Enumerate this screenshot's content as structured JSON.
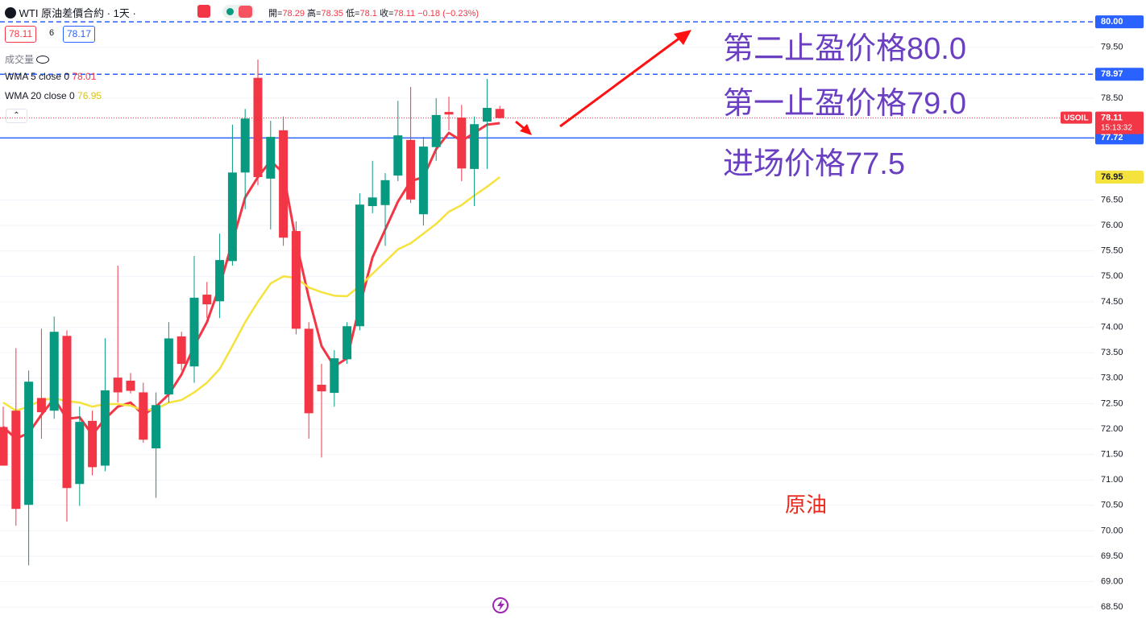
{
  "chart_data": {
    "type": "candlestick",
    "header": {
      "symbol": "WTI",
      "title": "原油差價合約 · 1天 ·",
      "open_label": "開=",
      "high_label": "高=",
      "low_label": "低=",
      "close_label": "收=",
      "change": "−0.18 (−0.23%)"
    },
    "trade": {
      "sell": 78.11,
      "spread": 6,
      "buy": 78.17
    },
    "volume_label": "成交量",
    "categories": [
      null,
      null,
      null,
      null,
      null,
      null,
      null,
      null,
      null,
      null,
      null,
      null,
      null,
      null,
      null,
      null,
      null,
      null,
      null,
      null,
      null,
      null,
      null,
      null,
      null,
      null,
      null,
      null,
      null,
      null,
      null,
      null,
      null,
      null,
      null,
      null,
      null,
      null,
      null,
      null
    ],
    "open": [
      72.04,
      72.36,
      70.51,
      72.61,
      72.36,
      73.83,
      70.92,
      72.16,
      71.28,
      73.01,
      72.95,
      72.72,
      71.62,
      72.68,
      73.82,
      73.23,
      74.64,
      74.51,
      75.3,
      77.04,
      78.9,
      76.92,
      77.87,
      75.89,
      73.97,
      72.87,
      72.71,
      73.37,
      74.02,
      76.38,
      76.4,
      76.98,
      77.68,
      76.22,
      77.54,
      78.23,
      78.12,
      77.11,
      78.04,
      78.29
    ],
    "high": [
      72.44,
      73.59,
      73.15,
      73.97,
      74.21,
      73.94,
      72.44,
      72.36,
      73.78,
      75.21,
      73.1,
      72.91,
      72.72,
      74.1,
      73.91,
      75.4,
      74.89,
      75.84,
      77.98,
      78.29,
      79.26,
      78.06,
      78.14,
      76.08,
      74.1,
      73.28,
      73.55,
      74.1,
      76.63,
      77.27,
      77.03,
      78.45,
      78.72,
      77.74,
      78.5,
      78.53,
      78.37,
      78.14,
      78.88,
      78.35
    ],
    "low": [
      71.28,
      70.1,
      69.32,
      71.81,
      72.2,
      70.18,
      70.49,
      71.09,
      71.17,
      72.52,
      72.7,
      71.73,
      70.65,
      72.52,
      73.15,
      72.91,
      74.18,
      74.18,
      75.21,
      76.32,
      76.79,
      75.92,
      75.6,
      73.86,
      71.81,
      71.44,
      72.44,
      73.28,
      73.94,
      76.24,
      75.6,
      76.87,
      76.44,
      76.0,
      77.27,
      77.87,
      76.87,
      76.38,
      77.11,
      78.1
    ],
    "close": [
      71.28,
      70.43,
      72.93,
      72.33,
      73.91,
      70.84,
      72.14,
      71.25,
      72.76,
      72.72,
      72.75,
      71.79,
      72.47,
      73.78,
      73.28,
      74.58,
      74.45,
      75.32,
      77.04,
      78.1,
      76.95,
      77.74,
      75.76,
      73.97,
      72.31,
      72.74,
      73.39,
      74.02,
      76.41,
      76.55,
      76.89,
      77.77,
      76.51,
      77.55,
      78.17,
      78.18,
      77.12,
      77.99,
      78.31,
      78.11
    ],
    "up_color": "#089981",
    "down_color": "#f23645",
    "series": [
      {
        "name": "WMA 5 close 0",
        "color": "#f23645",
        "values": [
          72.04,
          71.81,
          71.92,
          72.28,
          72.6,
          72.2,
          72.23,
          71.89,
          72.2,
          72.44,
          72.52,
          72.28,
          72.44,
          72.68,
          73.07,
          73.63,
          74.1,
          74.81,
          75.68,
          76.55,
          76.95,
          77.27,
          77.03,
          75.68,
          74.58,
          73.63,
          73.23,
          73.39,
          74.42,
          75.37,
          75.92,
          76.47,
          76.87,
          76.95,
          77.5,
          77.82,
          77.66,
          77.82,
          77.98,
          78.01
        ]
      },
      {
        "name": "WMA 20 close 0",
        "color": "#f5e23c",
        "values": [
          72.52,
          72.36,
          72.44,
          72.57,
          72.6,
          72.55,
          72.52,
          72.44,
          72.49,
          72.49,
          72.46,
          72.36,
          72.39,
          72.52,
          72.57,
          72.72,
          72.91,
          73.18,
          73.63,
          74.1,
          74.5,
          74.86,
          75.0,
          74.97,
          74.78,
          74.69,
          74.62,
          74.61,
          74.81,
          75.05,
          75.29,
          75.53,
          75.65,
          75.84,
          76.03,
          76.27,
          76.4,
          76.59,
          76.76,
          76.95
        ]
      }
    ],
    "ylim": [
      68.33,
      80.43
    ],
    "yticks": [
      {
        "value": 79.5,
        "label": "79.50"
      },
      {
        "value": 78.5,
        "label": "78.50"
      },
      {
        "value": 76.5,
        "label": "76.50"
      },
      {
        "value": 76,
        "label": "76.00"
      },
      {
        "value": 75.5,
        "label": "75.50"
      },
      {
        "value": 75,
        "label": "75.00"
      },
      {
        "value": 74.5,
        "label": "74.50"
      },
      {
        "value": 74,
        "label": "74.00"
      },
      {
        "value": 73.5,
        "label": "73.50"
      },
      {
        "value": 73,
        "label": "73.00"
      },
      {
        "value": 72.5,
        "label": "72.50"
      },
      {
        "value": 72,
        "label": "72.00"
      },
      {
        "value": 71.5,
        "label": "71.50"
      },
      {
        "value": 71,
        "label": "71.00"
      },
      {
        "value": 70.5,
        "label": "70.50"
      },
      {
        "value": 70,
        "label": "70.00"
      },
      {
        "value": 69.5,
        "label": "69.50"
      },
      {
        "value": 69,
        "label": "69.00"
      },
      {
        "value": 68.5,
        "label": "68.50"
      }
    ],
    "grid": true,
    "levels": [
      {
        "value": 80,
        "label": "80.00",
        "color": "#2962ff",
        "style": "dashed"
      },
      {
        "value": 78.97,
        "label": "78.97",
        "color": "#2962ff",
        "style": "dashed"
      },
      {
        "value": 77.72,
        "label": "77.72",
        "color": "#2962ff",
        "style": "solid"
      }
    ],
    "last_price": {
      "symbol": "USOIL",
      "countdown": "15:13:32"
    },
    "annotations": [
      {
        "text": "第二止盈价格80.0",
        "color": "#6a3fc1"
      },
      {
        "text": "第一止盈价格79.0",
        "color": "#6a3fc1"
      },
      {
        "text": "进场价格77.5",
        "color": "#6a3fc1"
      },
      {
        "text": "原油",
        "color": "#e8291c"
      }
    ]
  }
}
